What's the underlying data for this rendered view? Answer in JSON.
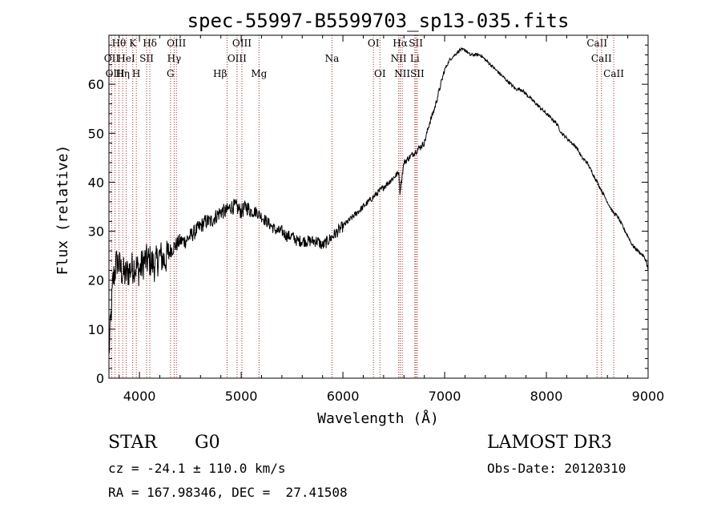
{
  "chart_data": {
    "type": "line",
    "title": "spec-55997-B5599703_sp13-035.fits",
    "xlabel": "Wavelength (Å)",
    "ylabel": "Flux (relative)",
    "xlim": [
      3700,
      9000
    ],
    "ylim": [
      0,
      70
    ],
    "xticks": [
      4000,
      5000,
      6000,
      7000,
      8000,
      9000
    ],
    "yticks": [
      0,
      10,
      20,
      30,
      40,
      50,
      60
    ],
    "grid": false,
    "series": [
      {
        "name": "flux",
        "color": "#000000",
        "x": [
          3700,
          3740,
          3780,
          3820,
          3860,
          3900,
          3950,
          4000,
          4050,
          4100,
          4150,
          4200,
          4250,
          4300,
          4350,
          4400,
          4450,
          4500,
          4550,
          4600,
          4650,
          4700,
          4750,
          4800,
          4850,
          4900,
          4950,
          5000,
          5050,
          5100,
          5150,
          5200,
          5250,
          5300,
          5350,
          5400,
          5450,
          5500,
          5550,
          5600,
          5650,
          5700,
          5750,
          5800,
          5850,
          5900,
          5950,
          6000,
          6050,
          6100,
          6150,
          6200,
          6250,
          6300,
          6350,
          6400,
          6450,
          6500,
          6550,
          6560,
          6580,
          6600,
          6650,
          6700,
          6750,
          6800,
          6850,
          6900,
          6950,
          7000,
          7050,
          7100,
          7150,
          7200,
          7250,
          7300,
          7350,
          7400,
          7450,
          7500,
          7550,
          7600,
          7650,
          7700,
          7750,
          7800,
          7850,
          7900,
          7950,
          8000,
          8050,
          8100,
          8150,
          8200,
          8250,
          8300,
          8350,
          8400,
          8450,
          8500,
          8550,
          8600,
          8650,
          8700,
          8750,
          8800,
          8850,
          8900,
          8950,
          8980,
          9000
        ],
        "y": [
          5,
          20,
          24,
          22,
          21,
          22,
          23,
          22,
          24,
          24,
          23,
          25,
          24,
          26,
          27,
          28,
          28,
          29,
          30,
          31,
          32,
          32,
          33,
          34,
          34,
          35,
          35,
          34,
          35,
          34,
          34,
          33,
          32,
          31,
          30,
          30,
          29,
          29,
          28,
          28,
          28,
          28,
          28,
          27,
          28,
          29,
          30,
          31,
          32,
          33,
          34,
          35,
          36,
          37,
          38,
          39,
          40,
          41,
          42,
          38,
          41,
          44,
          45,
          46,
          47,
          48,
          52,
          55,
          59,
          63,
          65,
          66,
          67,
          67,
          66,
          66,
          66,
          65,
          64,
          63,
          62,
          61,
          60,
          59,
          59,
          58,
          57,
          56,
          55,
          54,
          53,
          52,
          50,
          49,
          48,
          47,
          45,
          44,
          42,
          40,
          38,
          36,
          34,
          33,
          31,
          29,
          27,
          26,
          25,
          24,
          22
        ]
      }
    ],
    "line_markers": [
      {
        "name": "Hθ",
        "x": 3798,
        "row": 0,
        "anchor": "middle"
      },
      {
        "name": "OII",
        "x": 3727,
        "row": 1,
        "anchor": "middle"
      },
      {
        "name": "OIII",
        "x": 3760,
        "row": 2,
        "anchor": "middle"
      },
      {
        "name": "Hη",
        "x": 3835,
        "row": 2,
        "anchor": "middle"
      },
      {
        "name": "HeI",
        "x": 3870,
        "row": 1,
        "anchor": "middle"
      },
      {
        "name": "K",
        "x": 3934,
        "row": 0,
        "anchor": "middle"
      },
      {
        "name": "H",
        "x": 3969,
        "row": 2,
        "anchor": "middle"
      },
      {
        "name": "SII",
        "x": 4070,
        "row": 1,
        "anchor": "middle"
      },
      {
        "name": "Hδ",
        "x": 4102,
        "row": 0,
        "anchor": "middle"
      },
      {
        "name": "G",
        "x": 4305,
        "row": 2,
        "anchor": "middle"
      },
      {
        "name": "Hγ",
        "x": 4341,
        "row": 1,
        "anchor": "middle"
      },
      {
        "name": "OIII",
        "x": 4363,
        "row": 0,
        "anchor": "middle"
      },
      {
        "name": "Hβ",
        "x": 4861,
        "row": 2,
        "anchor": "end"
      },
      {
        "name": "OIII",
        "x": 4959,
        "row": 1,
        "anchor": "middle"
      },
      {
        "name": "OIII",
        "x": 5007,
        "row": 0,
        "anchor": "middle"
      },
      {
        "name": "Mg",
        "x": 5175,
        "row": 2,
        "anchor": "middle"
      },
      {
        "name": "Na",
        "x": 5893,
        "row": 1,
        "anchor": "middle"
      },
      {
        "name": "OI",
        "x": 6300,
        "row": 0,
        "anchor": "middle"
      },
      {
        "name": "OI",
        "x": 6364,
        "row": 2,
        "anchor": "middle"
      },
      {
        "name": "NII",
        "x": 6548,
        "row": 1,
        "anchor": "middle"
      },
      {
        "name": "Hα",
        "x": 6563,
        "row": 0,
        "anchor": "middle"
      },
      {
        "name": "NII",
        "x": 6583,
        "row": 2,
        "anchor": "middle"
      },
      {
        "name": "Li",
        "x": 6707,
        "row": 1,
        "anchor": "middle"
      },
      {
        "name": "SII",
        "x": 6717,
        "row": 0,
        "anchor": "middle"
      },
      {
        "name": "SII",
        "x": 6731,
        "row": 2,
        "anchor": "middle"
      },
      {
        "name": "CaII",
        "x": 8498,
        "row": 0,
        "anchor": "middle"
      },
      {
        "name": "CaII",
        "x": 8542,
        "row": 1,
        "anchor": "middle"
      },
      {
        "name": "CaII",
        "x": 8662,
        "row": 2,
        "anchor": "middle"
      }
    ],
    "marker_color": "#b22222",
    "axis_color": "#000000"
  },
  "info": {
    "class_label": "STAR",
    "subclass": "G0",
    "survey": "LAMOST DR3",
    "velocity": "cz = -24.1 ± 110.0 km/s",
    "obs_date": "Obs-Date: 20120310",
    "coords": "RA = 167.98346, DEC =  27.41508"
  }
}
